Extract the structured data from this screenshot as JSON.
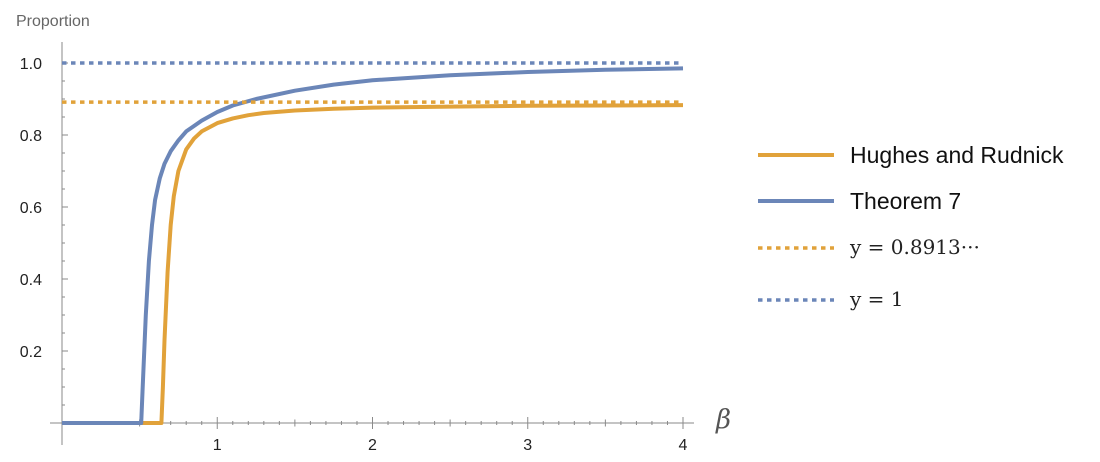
{
  "chart_data": {
    "type": "line",
    "ylabel": "Proportion",
    "xlabel": "β",
    "xlim": [
      0,
      4
    ],
    "ylim": [
      0,
      1
    ],
    "x_ticks": [
      1,
      2,
      3,
      4
    ],
    "x_tick_labels": [
      "1",
      "2",
      "3",
      "4"
    ],
    "y_ticks": [
      0.2,
      0.4,
      0.6,
      0.8,
      1.0
    ],
    "y_tick_labels": [
      "0.2",
      "0.4",
      "0.6",
      "0.8",
      "1.0"
    ],
    "grid": false,
    "legend_position": "right",
    "series": [
      {
        "name": "Hughes and Rudnick",
        "color": "#e1a23a",
        "style": "solid",
        "x": [
          0,
          0.64,
          0.65,
          0.66,
          0.68,
          0.7,
          0.72,
          0.75,
          0.8,
          0.85,
          0.9,
          1.0,
          1.1,
          1.2,
          1.3,
          1.5,
          1.75,
          2.0,
          2.5,
          3.0,
          3.5,
          4.0
        ],
        "y": [
          0,
          0,
          0.1,
          0.23,
          0.42,
          0.55,
          0.63,
          0.7,
          0.76,
          0.79,
          0.81,
          0.833,
          0.846,
          0.855,
          0.861,
          0.868,
          0.873,
          0.876,
          0.879,
          0.881,
          0.882,
          0.883
        ]
      },
      {
        "name": "Theorem 7",
        "color": "#6b86b8",
        "style": "solid",
        "x": [
          0,
          0.51,
          0.52,
          0.54,
          0.56,
          0.58,
          0.6,
          0.63,
          0.66,
          0.7,
          0.75,
          0.8,
          0.85,
          0.9,
          1.0,
          1.1,
          1.25,
          1.5,
          1.75,
          2.0,
          2.5,
          3.0,
          3.5,
          4.0
        ],
        "y": [
          0,
          0,
          0.1,
          0.3,
          0.45,
          0.55,
          0.62,
          0.68,
          0.72,
          0.755,
          0.785,
          0.81,
          0.825,
          0.84,
          0.864,
          0.882,
          0.9,
          0.923,
          0.94,
          0.952,
          0.966,
          0.975,
          0.981,
          0.985
        ]
      },
      {
        "name": "y = 0.8913···",
        "color": "#e1a23a",
        "style": "dotted",
        "x": [
          0,
          4
        ],
        "y": [
          0.8913,
          0.8913
        ]
      },
      {
        "name": "y = 1",
        "color": "#6b86b8",
        "style": "dotted",
        "x": [
          0,
          4
        ],
        "y": [
          1,
          1
        ]
      }
    ]
  }
}
